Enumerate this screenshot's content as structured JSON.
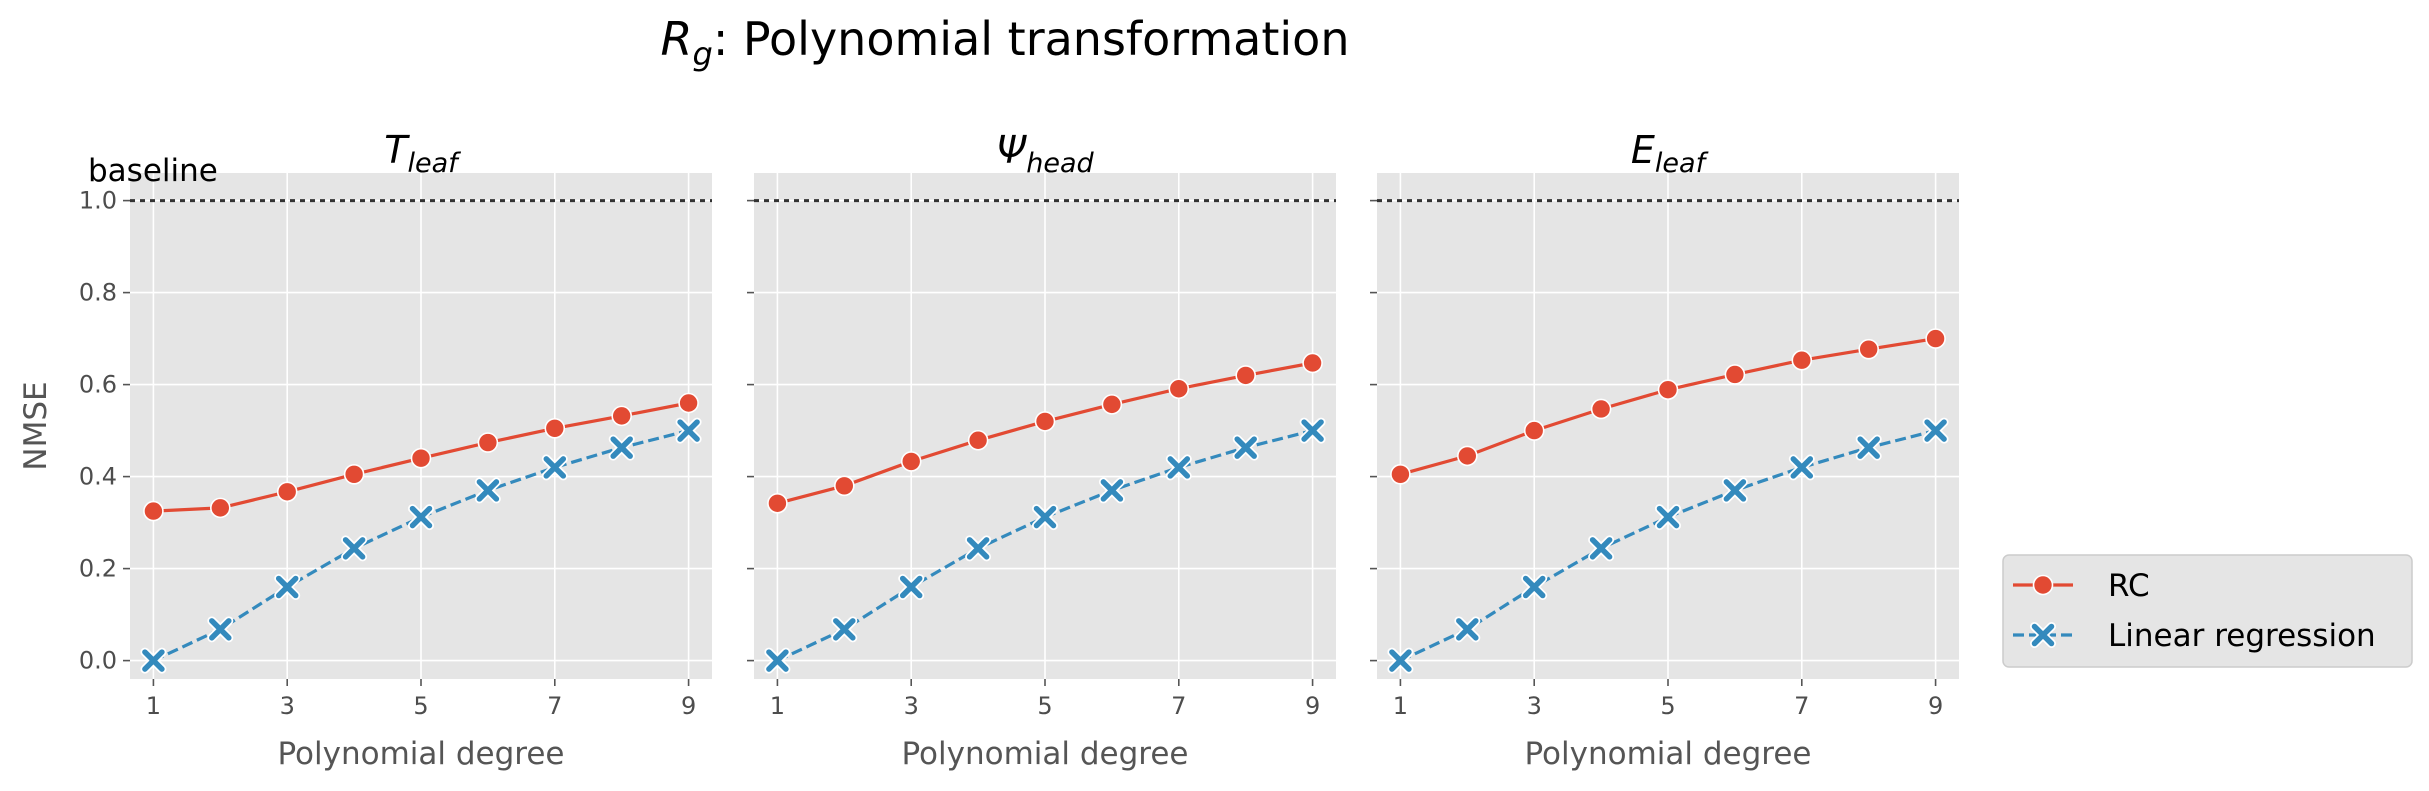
{
  "figure": {
    "title_prefix": "R",
    "title_sub": "g",
    "title_rest": ": Polynomial transformation"
  },
  "legend": {
    "placement": "outside-right-bottom",
    "entries": [
      "RC",
      "Linear regression"
    ]
  },
  "colors": {
    "rc": "#E24A33",
    "linear_regression": "#348ABD",
    "panel_bg": "#E5E5E5",
    "grid": "#FFFFFF",
    "baseline": "#333333"
  },
  "chart_data": [
    {
      "type": "line",
      "title_main": "T",
      "title_sub": "leaf",
      "xlabel": "Polynomial degree",
      "ylabel": "NMSE",
      "annotation": "baseline",
      "baseline_value": 1.0,
      "x": [
        1,
        2,
        3,
        4,
        5,
        6,
        7,
        8,
        9
      ],
      "xticks": [
        "1",
        "3",
        "5",
        "7",
        "9"
      ],
      "yticks": [
        "0.0",
        "0.2",
        "0.4",
        "0.6",
        "0.8",
        "1.0"
      ],
      "xlim": [
        0.65,
        9.35
      ],
      "ylim": [
        -0.04,
        1.06
      ],
      "grid": true,
      "series": [
        {
          "name": "RC",
          "marker": "circle",
          "linestyle": "solid",
          "values": [
            0.325,
            0.332,
            0.367,
            0.405,
            0.44,
            0.474,
            0.505,
            0.532,
            0.56
          ]
        },
        {
          "name": "Linear regression",
          "marker": "x",
          "linestyle": "dashed",
          "values": [
            0.0,
            0.068,
            0.16,
            0.244,
            0.312,
            0.37,
            0.42,
            0.463,
            0.5
          ]
        }
      ]
    },
    {
      "type": "line",
      "title_main": "Ψ",
      "title_sub": "head",
      "xlabel": "Polynomial degree",
      "ylabel": "",
      "x": [
        1,
        2,
        3,
        4,
        5,
        6,
        7,
        8,
        9
      ],
      "xticks": [
        "1",
        "3",
        "5",
        "7",
        "9"
      ],
      "yticks": [],
      "baseline_value": 1.0,
      "xlim": [
        0.65,
        9.35
      ],
      "ylim": [
        -0.04,
        1.06
      ],
      "grid": true,
      "series": [
        {
          "name": "RC",
          "marker": "circle",
          "linestyle": "solid",
          "values": [
            0.342,
            0.38,
            0.433,
            0.479,
            0.52,
            0.557,
            0.591,
            0.62,
            0.647
          ]
        },
        {
          "name": "Linear regression",
          "marker": "x",
          "linestyle": "dashed",
          "values": [
            0.0,
            0.068,
            0.16,
            0.244,
            0.312,
            0.37,
            0.42,
            0.463,
            0.5
          ]
        }
      ]
    },
    {
      "type": "line",
      "title_main": "E",
      "title_sub": "leaf",
      "xlabel": "Polynomial degree",
      "ylabel": "",
      "x": [
        1,
        2,
        3,
        4,
        5,
        6,
        7,
        8,
        9
      ],
      "xticks": [
        "1",
        "3",
        "5",
        "7",
        "9"
      ],
      "yticks": [],
      "baseline_value": 1.0,
      "xlim": [
        0.65,
        9.35
      ],
      "ylim": [
        -0.04,
        1.06
      ],
      "grid": true,
      "series": [
        {
          "name": "RC",
          "marker": "circle",
          "linestyle": "solid",
          "values": [
            0.405,
            0.445,
            0.5,
            0.547,
            0.589,
            0.622,
            0.653,
            0.677,
            0.7
          ]
        },
        {
          "name": "Linear regression",
          "marker": "x",
          "linestyle": "dashed",
          "values": [
            0.0,
            0.068,
            0.16,
            0.244,
            0.312,
            0.37,
            0.42,
            0.463,
            0.5
          ]
        }
      ]
    }
  ]
}
